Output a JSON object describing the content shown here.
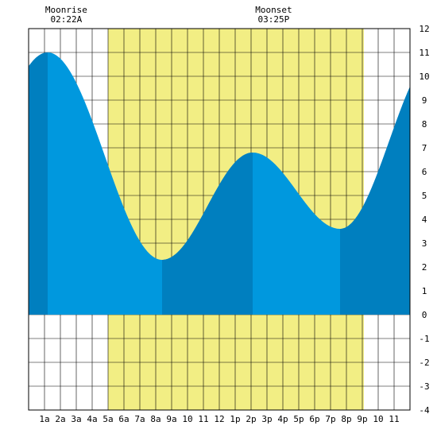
{
  "colors": {
    "daylight": "#F2EE84",
    "night": "#FFFFFF",
    "tide_rising": "#0098DE",
    "tide_falling_band": "#007FBF",
    "grid": "#000000",
    "border": "#000000"
  },
  "moon": {
    "rise_label": "Moonrise",
    "rise_time": "02:22A",
    "rise_hour": 2.37,
    "set_label": "Moonset",
    "set_time": "03:25P",
    "set_hour": 15.42
  },
  "chart_data": {
    "type": "area",
    "title": "",
    "xlabel": "",
    "ylabel": "",
    "xlim": [
      0,
      24
    ],
    "ylim": [
      -4,
      12
    ],
    "daylight_hours": [
      5.0,
      21.1
    ],
    "x_tick_labels": [
      {
        "hour": 1,
        "label": "1a"
      },
      {
        "hour": 2,
        "label": "2a"
      },
      {
        "hour": 3,
        "label": "3a"
      },
      {
        "hour": 4,
        "label": "4a"
      },
      {
        "hour": 5,
        "label": "5a"
      },
      {
        "hour": 6,
        "label": "6a"
      },
      {
        "hour": 7,
        "label": "7a"
      },
      {
        "hour": 8,
        "label": "8a"
      },
      {
        "hour": 9,
        "label": "9a"
      },
      {
        "hour": 10,
        "label": "10"
      },
      {
        "hour": 11,
        "label": "11"
      },
      {
        "hour": 12,
        "label": "12"
      },
      {
        "hour": 13,
        "label": "1p"
      },
      {
        "hour": 14,
        "label": "2p"
      },
      {
        "hour": 15,
        "label": "3p"
      },
      {
        "hour": 16,
        "label": "4p"
      },
      {
        "hour": 17,
        "label": "5p"
      },
      {
        "hour": 18,
        "label": "6p"
      },
      {
        "hour": 19,
        "label": "7p"
      },
      {
        "hour": 20,
        "label": "8p"
      },
      {
        "hour": 21,
        "label": "9p"
      },
      {
        "hour": 22,
        "label": "10"
      },
      {
        "hour": 23,
        "label": "11"
      }
    ],
    "y_tick_labels": [
      "12",
      "11",
      "10",
      "9",
      "8",
      "7",
      "6",
      "5",
      "4",
      "3",
      "2",
      "1",
      "0",
      "-1",
      "-2",
      "-3",
      "-4"
    ],
    "tide_extrema": [
      {
        "hour": 1.2,
        "height": 11.0,
        "kind": "high"
      },
      {
        "hour": 8.4,
        "height": 2.3,
        "kind": "low"
      },
      {
        "hour": 14.1,
        "height": 6.8,
        "kind": "high"
      },
      {
        "hour": 19.6,
        "height": 3.6,
        "kind": "low"
      }
    ],
    "tide_start": {
      "hour": 0,
      "height": 10.4
    },
    "tide_end": {
      "hour": 24,
      "height": 9.4
    },
    "dark_bands": [
      [
        0,
        1.2
      ],
      [
        8.4,
        14.1
      ],
      [
        19.6,
        24
      ]
    ]
  }
}
